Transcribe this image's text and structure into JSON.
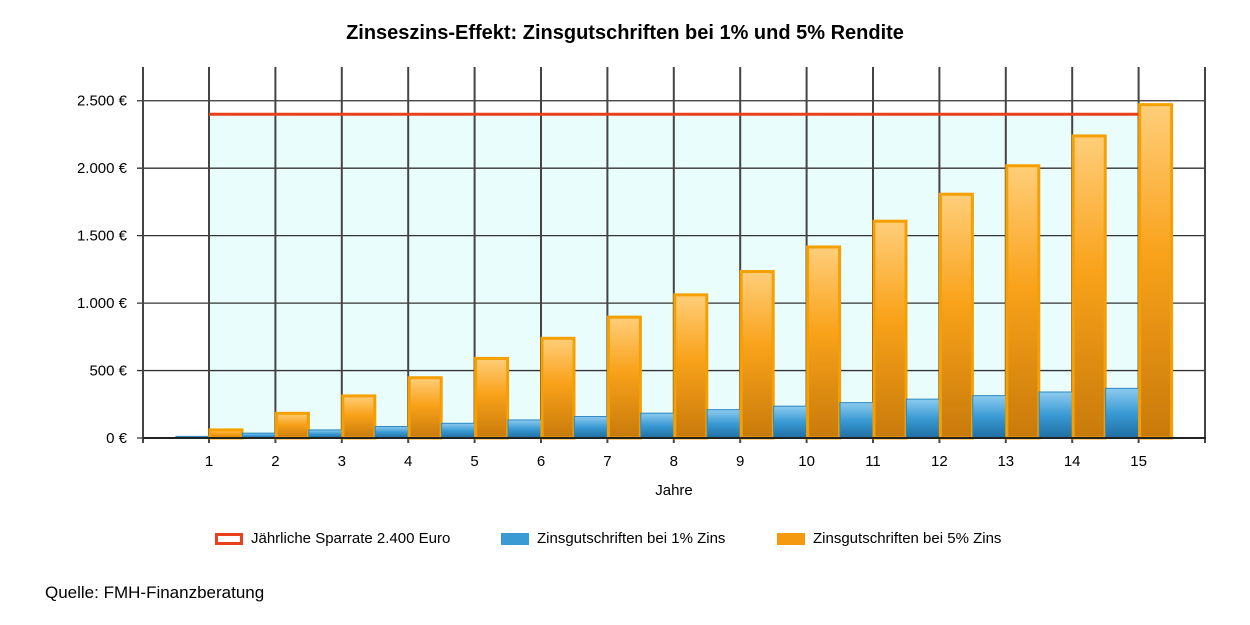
{
  "chart_data": {
    "type": "bar",
    "title": "Zinseszins-Effekt: Zinsgutschriften bei 1% und 5% Rendite",
    "xlabel": "Jahre",
    "ylabel": "",
    "categories": [
      "1",
      "2",
      "3",
      "4",
      "5",
      "6",
      "7",
      "8",
      "9",
      "10",
      "11",
      "12",
      "13",
      "14",
      "15"
    ],
    "ylim": [
      0,
      2750
    ],
    "yticks": [
      0,
      500,
      1000,
      1500,
      2000,
      2500
    ],
    "ytick_labels": [
      "0 €",
      "500 €",
      "1.000 €",
      "1.500 €",
      "2.000 €",
      "2.500 €"
    ],
    "grid": true,
    "legend_position": "bottom",
    "series": [
      {
        "name": "Jährliche Sparrate 2.400 Euro",
        "type": "line",
        "color": "#e8401c",
        "values": [
          2400,
          2400,
          2400,
          2400,
          2400,
          2400,
          2400,
          2400,
          2400,
          2400,
          2400,
          2400,
          2400,
          2400,
          2400
        ]
      },
      {
        "name": "Zinsgutschriften bei 1% Zins",
        "type": "bar",
        "color": "#3a9ad4",
        "values": [
          12,
          36,
          60,
          85,
          109,
          134,
          159,
          184,
          210,
          236,
          262,
          288,
          314,
          341,
          368
        ]
      },
      {
        "name": "Zinsgutschriften bei 5% Zins",
        "type": "bar",
        "color": "#f59a10",
        "values": [
          60,
          183,
          312,
          447,
          590,
          739,
          896,
          1061,
          1234,
          1416,
          1607,
          1807,
          2018,
          2239,
          2471
        ]
      }
    ],
    "plot_area_fill": "#e9fdfd"
  },
  "source_note": "Quelle: FMH-Finanzberatung"
}
